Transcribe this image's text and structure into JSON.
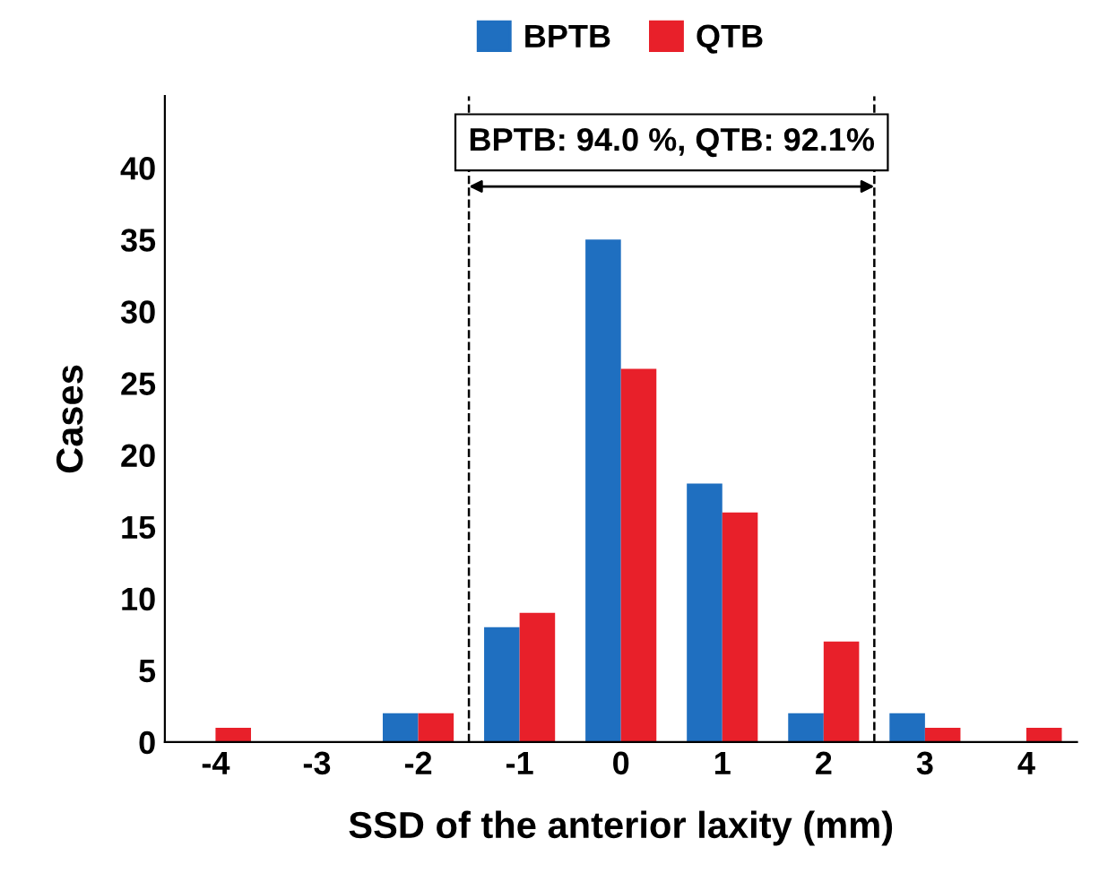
{
  "chart_data": {
    "type": "bar",
    "xlabel": "SSD of the anterior laxity (mm)",
    "ylabel": "Cases",
    "x": [
      -4,
      -3,
      -2,
      -1,
      0,
      1,
      2,
      3,
      4
    ],
    "series": [
      {
        "name": "BPTB",
        "color": "#1f6fc0",
        "values": [
          0,
          0,
          2,
          8,
          35,
          18,
          2,
          2,
          0
        ]
      },
      {
        "name": "QTB",
        "color": "#e8202a",
        "values": [
          1,
          0,
          2,
          9,
          26,
          16,
          7,
          1,
          1
        ]
      }
    ],
    "xlim": [
      -4.5,
      4.5
    ],
    "xticks": [
      -4,
      -3,
      -2,
      -1,
      0,
      1,
      2,
      3,
      4
    ],
    "ylim": [
      0,
      45
    ],
    "yticks": [
      0,
      5,
      10,
      15,
      20,
      25,
      30,
      35,
      40
    ],
    "ref_lines": [
      {
        "axis": "x",
        "value": -1.5,
        "color": "#000000",
        "line_style": "dashed"
      },
      {
        "axis": "x",
        "value": 2.5,
        "color": "#000000",
        "line_style": "dashed"
      }
    ],
    "annotations": [
      "BPTB: 94.0 %, QTB: 92.1%"
    ],
    "legend": "top",
    "grid": false
  }
}
